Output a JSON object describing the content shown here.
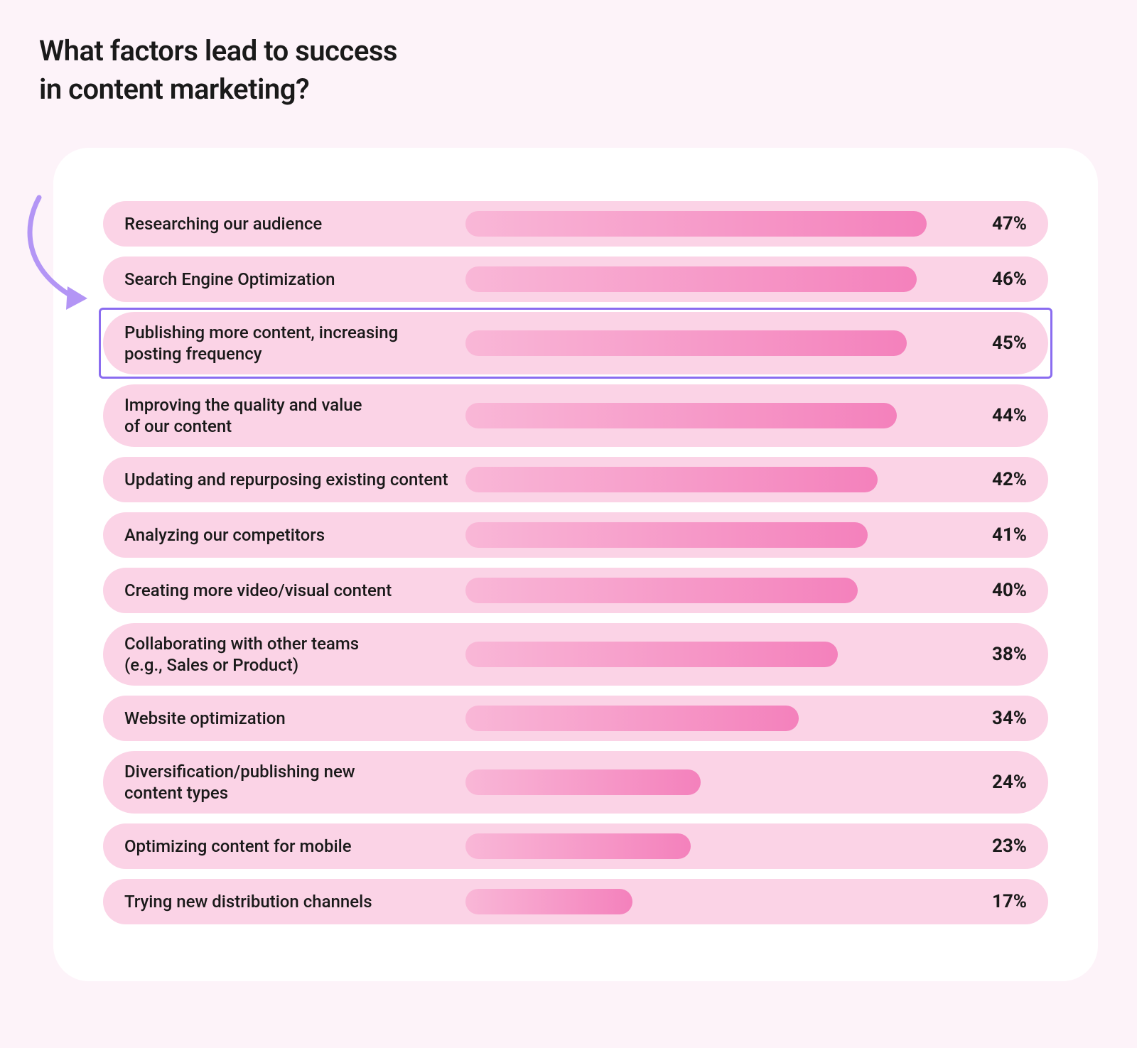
{
  "title_line1": "What factors lead to success",
  "title_line2": "in content marketing?",
  "chart": {
    "type": "bar-horizontal",
    "background_color": "#ffffff",
    "page_background_color": "#fdf3f9",
    "row_background_color": "#fbd3e6",
    "bar_gradient_start": "#f9b7d7",
    "bar_gradient_end": "#f481bc",
    "label_fontsize": 24,
    "pct_fontsize": 26,
    "title_fontsize": 40,
    "highlight_border_color": "#8a6cf0",
    "arrow_color": "#b395f5",
    "bar_max_pct": 50,
    "rows": [
      {
        "label_lines": [
          "Researching our audience"
        ],
        "pct": 47,
        "highlighted": false
      },
      {
        "label_lines": [
          "Search Engine Optimization"
        ],
        "pct": 46,
        "highlighted": false
      },
      {
        "label_lines": [
          "Publishing more content, increasing",
          "posting frequency"
        ],
        "pct": 45,
        "highlighted": true
      },
      {
        "label_lines": [
          "Improving the quality and value",
          "of our content"
        ],
        "pct": 44,
        "highlighted": false
      },
      {
        "label_lines": [
          "Updating and repurposing existing content"
        ],
        "pct": 42,
        "highlighted": false
      },
      {
        "label_lines": [
          "Analyzing our competitors"
        ],
        "pct": 41,
        "highlighted": false
      },
      {
        "label_lines": [
          "Creating more video/visual content"
        ],
        "pct": 40,
        "highlighted": false
      },
      {
        "label_lines": [
          "Collaborating with other teams",
          "(e.g., Sales or Product)"
        ],
        "pct": 38,
        "highlighted": false
      },
      {
        "label_lines": [
          "Website optimization"
        ],
        "pct": 34,
        "highlighted": false
      },
      {
        "label_lines": [
          "Diversification/publishing new",
          "content types"
        ],
        "pct": 24,
        "highlighted": false
      },
      {
        "label_lines": [
          "Optimizing content for mobile"
        ],
        "pct": 23,
        "highlighted": false
      },
      {
        "label_lines": [
          "Trying new distribution channels"
        ],
        "pct": 17,
        "highlighted": false
      }
    ]
  }
}
